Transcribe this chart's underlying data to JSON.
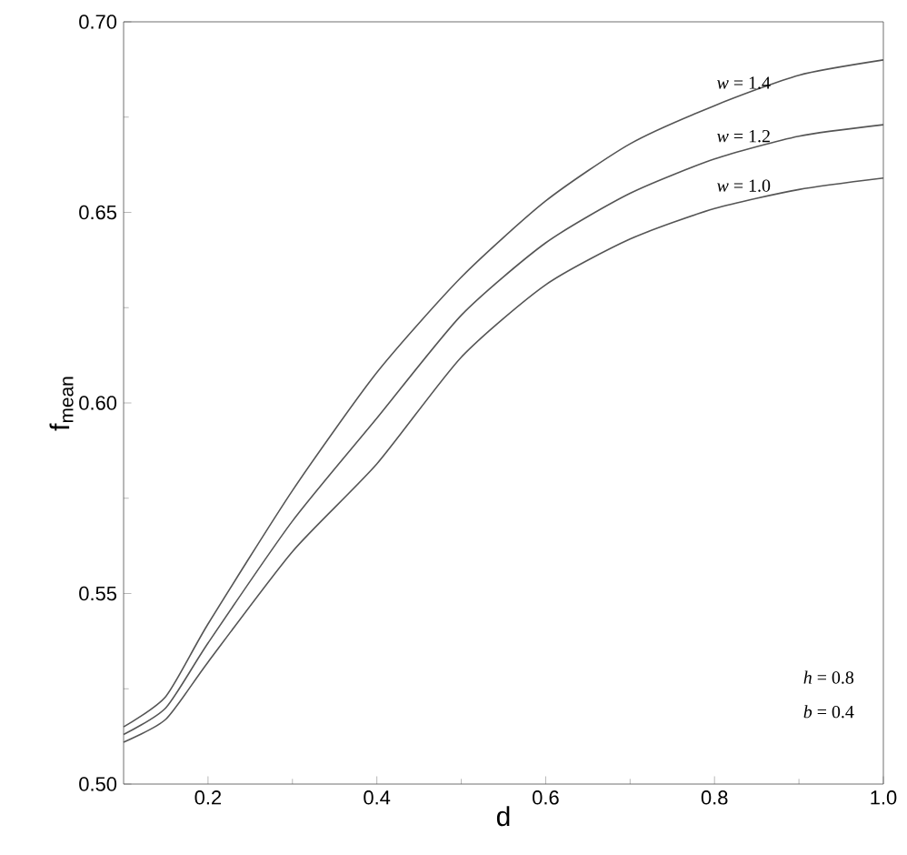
{
  "chart_data": {
    "type": "line",
    "xlabel": "d",
    "ylabel": "f$_{mean}$",
    "x": [
      0.1,
      0.15,
      0.2,
      0.3,
      0.4,
      0.5,
      0.6,
      0.7,
      0.8,
      0.9,
      1.0
    ],
    "series": [
      {
        "name": "*w* = 1.4",
        "color": "#555555",
        "values": [
          0.515,
          0.523,
          0.542,
          0.577,
          0.608,
          0.633,
          0.653,
          0.668,
          0.678,
          0.686,
          0.69
        ]
      },
      {
        "name": "*w* = 1.2",
        "color": "#555555",
        "values": [
          0.513,
          0.52,
          0.537,
          0.569,
          0.596,
          0.623,
          0.642,
          0.655,
          0.664,
          0.67,
          0.673
        ]
      },
      {
        "name": "*w* = 1.0",
        "color": "#555555",
        "values": [
          0.511,
          0.517,
          0.532,
          0.561,
          0.584,
          0.612,
          0.631,
          0.643,
          0.651,
          0.656,
          0.659
        ]
      }
    ],
    "xlim": [
      0.1,
      1.0
    ],
    "ylim": [
      0.5,
      0.7
    ],
    "xticks": [
      0.2,
      0.4,
      0.6,
      0.8,
      {
        "value": 1.0,
        "label": "1.0"
      }
    ],
    "yticks": [
      {
        "value": 0.5,
        "label": "0.50"
      },
      0.55,
      {
        "value": 0.6,
        "label": "0.60"
      },
      0.65,
      {
        "value": 0.7,
        "label": "0.70"
      }
    ],
    "annotations": [
      "*h* = 0.8",
      "*b* = 0.4"
    ],
    "marker": "none",
    "line_style": "solid"
  }
}
